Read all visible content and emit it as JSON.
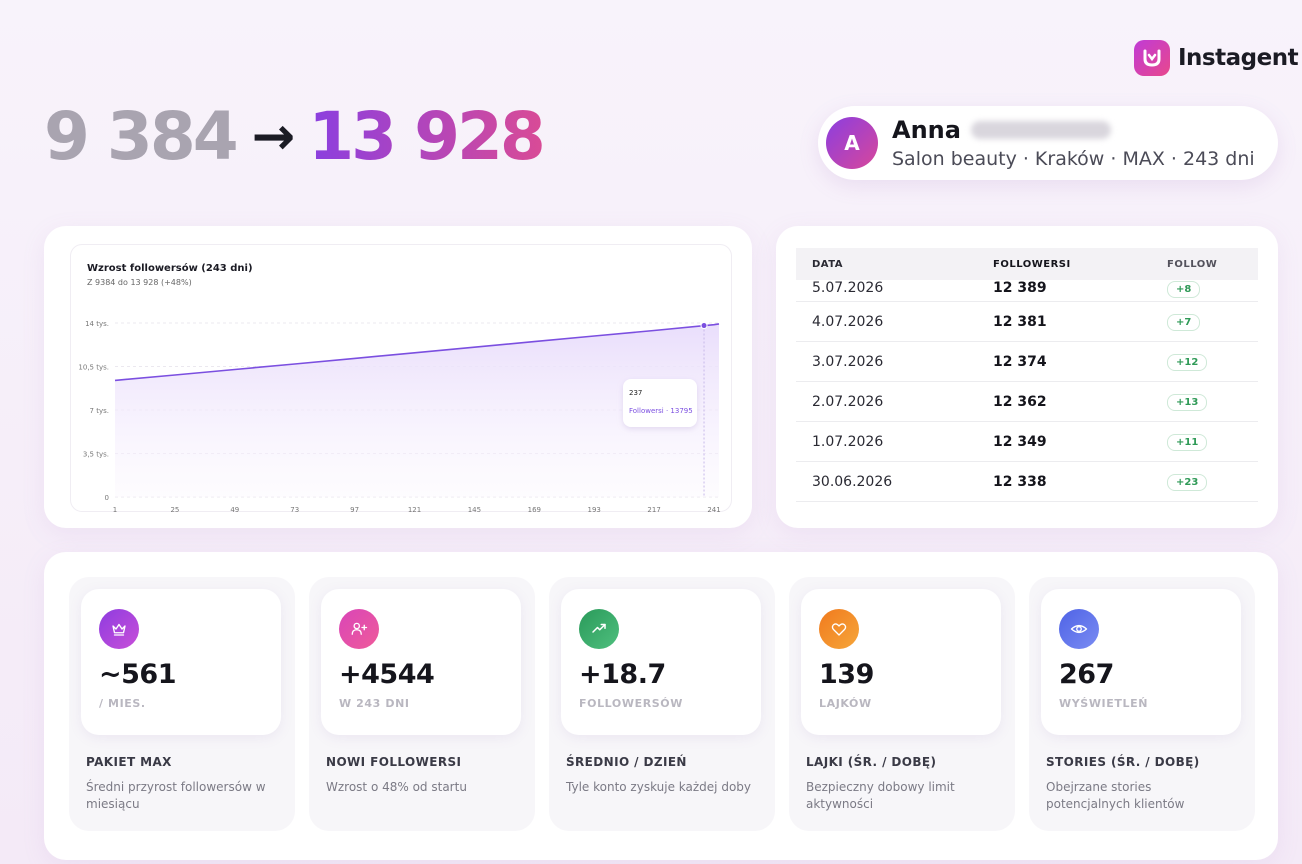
{
  "brand": {
    "name": "Instagent"
  },
  "headline": {
    "from": "9 384",
    "arrow": "→",
    "to": "13 928"
  },
  "profile": {
    "initial": "A",
    "first_name": "Anna",
    "subtitle": "Salon beauty · Kraków · MAX · 243 dni"
  },
  "chart": {
    "title": "Wzrost followersów (243 dni)",
    "subtitle": "Z 9384 do 13 928 (+48%)",
    "tooltip": {
      "day": "237",
      "label": "Followersi · 13795"
    }
  },
  "chart_data": {
    "type": "area",
    "title": "Wzrost followersów (243 dni)",
    "x": [
      1,
      25,
      49,
      73,
      97,
      121,
      145,
      169,
      193,
      217,
      241,
      243
    ],
    "values": [
      9384,
      9820,
      10260,
      10700,
      11150,
      11600,
      12050,
      12500,
      12950,
      13400,
      13860,
      13928
    ],
    "x_ticks": [
      "1",
      "25",
      "49",
      "73",
      "97",
      "121",
      "145",
      "169",
      "193",
      "217",
      "241"
    ],
    "y_ticks": [
      "0",
      "3,5 tys.",
      "7 tys.",
      "10,5 tys.",
      "14 tys."
    ],
    "y_tick_values": [
      0,
      3500,
      7000,
      10500,
      14000
    ],
    "xlim": [
      1,
      243
    ],
    "ylim": [
      0,
      14000
    ],
    "grid": true,
    "highlight": {
      "x": 237,
      "y": 13795
    },
    "colors": {
      "line": "#7b4fe0",
      "fill": "#e8dcfb"
    }
  },
  "table": {
    "headers": [
      "DATA",
      "FOLLOWERSI",
      "FOLLOW"
    ],
    "rows": [
      {
        "date": "5.07.2026",
        "followers": "12 389",
        "follow": "+8"
      },
      {
        "date": "4.07.2026",
        "followers": "12 381",
        "follow": "+7"
      },
      {
        "date": "3.07.2026",
        "followers": "12 374",
        "follow": "+12"
      },
      {
        "date": "2.07.2026",
        "followers": "12 362",
        "follow": "+13"
      },
      {
        "date": "1.07.2026",
        "followers": "12 349",
        "follow": "+11"
      },
      {
        "date": "30.06.2026",
        "followers": "12 338",
        "follow": "+23"
      }
    ]
  },
  "stats": [
    {
      "icon": "crown-icon",
      "color": "#9b3fe0",
      "value": "~561",
      "unit": "/ MIES.",
      "label": "PAKIET MAX",
      "desc": "Średni przyrost followersów w miesiącu"
    },
    {
      "icon": "user-plus-icon",
      "color": "#e14aa6",
      "value": "+4544",
      "unit": "W 243 DNI",
      "label": "NOWI FOLLOWERSI",
      "desc": "Wzrost o 48% od startu"
    },
    {
      "icon": "trend-up-icon",
      "color": "#2e9d5e",
      "value": "+18.7",
      "unit": "FOLLOWERSÓW",
      "label": "ŚREDNIO / DZIEŃ",
      "desc": "Tyle konto zyskuje każdej doby"
    },
    {
      "icon": "heart-icon",
      "color": "#f08a22",
      "value": "139",
      "unit": "LAJKÓW",
      "label": "LAJKI (ŚR. / DOBĘ)",
      "desc": "Bezpieczny dobowy limit aktywności"
    },
    {
      "icon": "eye-icon",
      "color": "#5b6ee8",
      "value": "267",
      "unit": "WYŚWIETLEŃ",
      "label": "STORIES (ŚR. / DOBĘ)",
      "desc": "Obejrzane stories potencjalnych klientów"
    }
  ]
}
